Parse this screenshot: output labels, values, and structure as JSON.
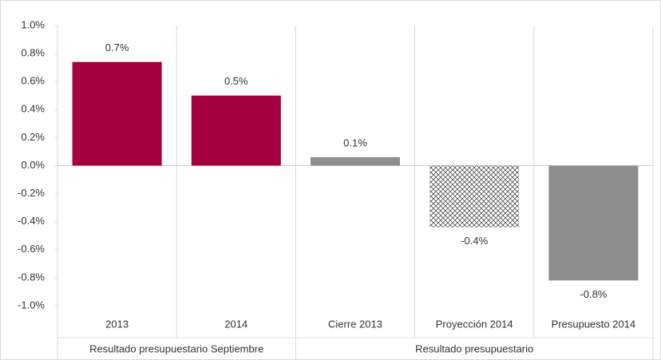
{
  "chart_data": {
    "type": "bar",
    "categories": [
      "2013",
      "2014",
      "Cierre 2013",
      "Proyección 2014",
      "Presupuesto 2014"
    ],
    "values": [
      0.74,
      0.5,
      0.06,
      -0.44,
      -0.82
    ],
    "value_labels": [
      "0.7%",
      "0.5%",
      "0.1%",
      "-0.4%",
      "-0.8%"
    ],
    "colors": [
      "#a3003f",
      "#a3003f",
      "#8e8e8e",
      "#333333",
      "#8e8e8e"
    ],
    "patterns": [
      null,
      null,
      null,
      "crosshatch",
      null
    ],
    "groups": [
      {
        "label": "Resultado presupuestario Septiembre",
        "size": 2
      },
      {
        "label": "Resultado presupuestario",
        "size": 3
      }
    ],
    "ylim": [
      -1.0,
      1.0
    ],
    "yticks": [
      {
        "value": -1.0,
        "label": "-1.0%"
      },
      {
        "value": -0.8,
        "label": "-0.8%"
      },
      {
        "value": -0.6,
        "label": "-0.6%"
      },
      {
        "value": -0.4,
        "label": "-0.4%"
      },
      {
        "value": -0.2,
        "label": "-0.2%"
      },
      {
        "value": 0.0,
        "label": "0.0%"
      },
      {
        "value": 0.2,
        "label": "0.2%"
      },
      {
        "value": 0.4,
        "label": "0.4%"
      },
      {
        "value": 0.6,
        "label": "0.6%"
      },
      {
        "value": 0.8,
        "label": "0.8%"
      },
      {
        "value": 1.0,
        "label": "1.0%"
      }
    ]
  }
}
